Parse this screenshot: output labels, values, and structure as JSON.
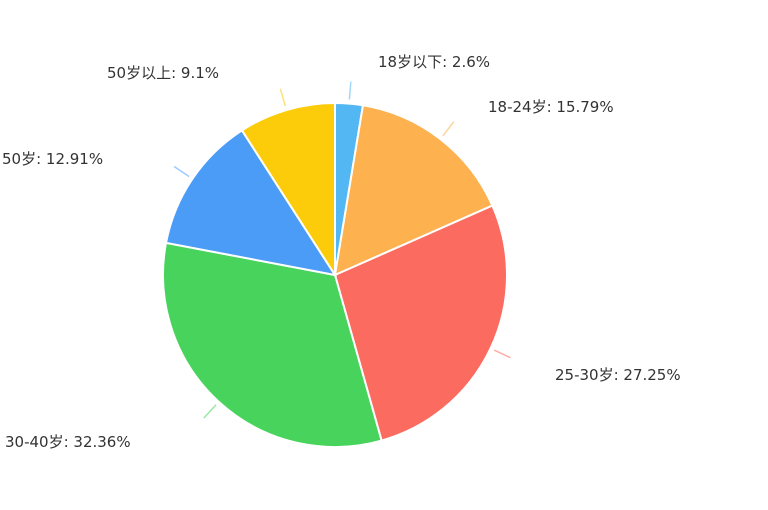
{
  "chart_data": {
    "type": "pie",
    "slices": [
      {
        "label": "18岁以下",
        "value": 2.6,
        "display": "18岁以下: 2.6%",
        "color": "#52b7f2"
      },
      {
        "label": "18-24岁",
        "value": 15.79,
        "display": "18-24岁: 15.79%",
        "color": "#fdb14f"
      },
      {
        "label": "25-30岁",
        "value": 27.25,
        "display": "25-30岁: 27.25%",
        "color": "#fb6b5f"
      },
      {
        "label": "30-40岁",
        "value": 32.36,
        "display": "30-40岁: 32.36%",
        "color": "#48d35d"
      },
      {
        "label": "50岁",
        "value": 12.91,
        "display": "50岁: 12.91%",
        "color": "#4b9cf7"
      },
      {
        "label": "50岁以上",
        "value": 9.1,
        "display": "50岁以上: 9.1%",
        "color": "#fccb0a"
      }
    ],
    "legend": "none",
    "start": "top",
    "direction": "clockwise"
  }
}
